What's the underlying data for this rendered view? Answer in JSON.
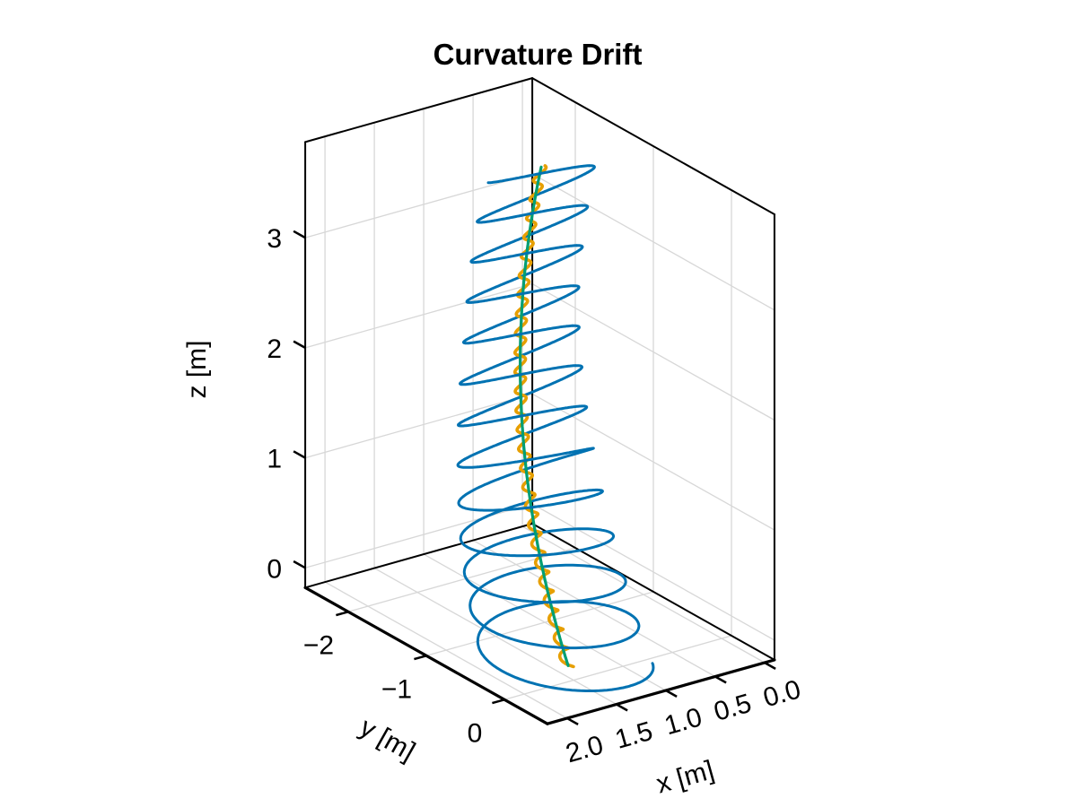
{
  "chart_data": {
    "type": "line",
    "projection": "3d",
    "title": "Curvature Drift",
    "xlabel": "x [m]",
    "ylabel": "y [m]",
    "zlabel": "z [m]",
    "grid": true,
    "legend": null,
    "background": "#ffffff",
    "box_color": "#000000",
    "grid_color": "#d7d7d7",
    "axes": {
      "x": {
        "label": "x [m]",
        "range": [
          -0.1,
          2.2
        ],
        "tick_values": [
          2.0,
          1.5,
          1.0,
          0.5,
          0.0
        ],
        "tick_labels": [
          "2.0",
          "1.5",
          "1.0",
          "0.5",
          "0.0"
        ]
      },
      "y": {
        "label": "y [m]",
        "range": [
          -2.55,
          0.55
        ],
        "tick_values": [
          -2,
          -1,
          0
        ],
        "tick_labels": [
          "−2",
          "−1",
          "0"
        ]
      },
      "z": {
        "label": "z [m]",
        "range": [
          -0.18,
          3.87
        ],
        "tick_values": [
          0,
          1,
          2,
          3
        ],
        "tick_labels": [
          "0",
          "1",
          "2",
          "3"
        ]
      }
    },
    "guiding_center_path": {
      "shape": "rising-circular-arc-about-z-axis",
      "arc_radius": 1.6,
      "angle_start_rad": 0.035,
      "angle_end_rad": -1.13,
      "z_start": 0.0,
      "z_end": 3.7,
      "start_point": [
        1.6,
        0.06,
        0.0
      ],
      "end_point": [
        0.68,
        -1.45,
        3.7
      ]
    },
    "series": [
      {
        "id": "particle-orbit",
        "color": "#0072B2",
        "line_width": 3,
        "model": "gyro-helix-around-guiding-center",
        "turns": 12.4,
        "gyro_radius_start": 0.68,
        "gyro_radius_end": 0.48,
        "phase_start_rad": 0.5
      },
      {
        "id": "guiding-center-numerical",
        "color": "#E69F00",
        "line_width": 3.6,
        "model": "guiding-center-with-residual-wiggle",
        "wiggle_amplitude": 0.045,
        "wiggle_cycles": 26,
        "wiggle_phase_rad": 1.0
      },
      {
        "id": "guiding-center-analytic",
        "color": "#009E73",
        "line_width": 3.2,
        "model": "guiding-center-smooth"
      }
    ]
  }
}
